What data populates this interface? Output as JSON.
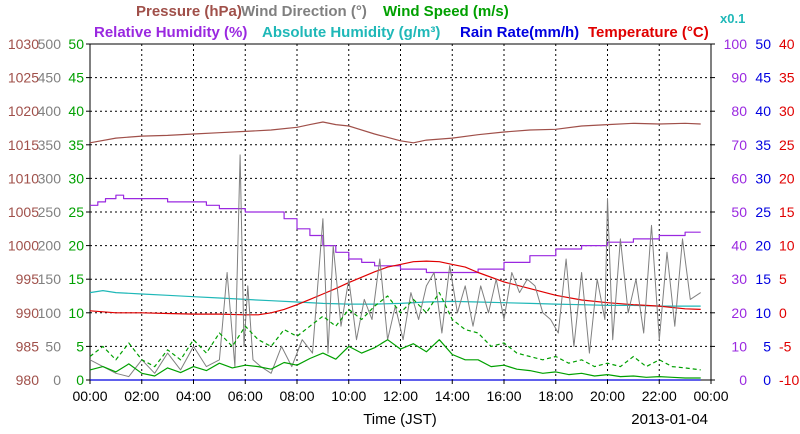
{
  "chart_data": {
    "type": "line",
    "title": "",
    "date_label": "2013-01-04",
    "xlabel": "Time (JST)",
    "x_ticks": [
      "00:00",
      "02:00",
      "04:00",
      "06:00",
      "08:00",
      "10:00",
      "12:00",
      "14:00",
      "16:00",
      "18:00",
      "20:00",
      "22:00",
      "00:00"
    ],
    "xlim": [
      0,
      24
    ],
    "grid": true,
    "legend": {
      "row1": [
        {
          "key": "pressure",
          "label": "Pressure (hPa)",
          "color": "#a0504a"
        },
        {
          "key": "wind_dir",
          "label": "Wind Direction (°)",
          "color": "#808080"
        },
        {
          "key": "wind_speed",
          "label": "Wind Speed (m/s)",
          "color": "#00a000"
        }
      ],
      "row2": [
        {
          "key": "rel_hum",
          "label": "Relative Humidity (%)",
          "color": "#9a28e0"
        },
        {
          "key": "abs_hum",
          "label": "Absolute Humidity (g/m³)",
          "color": "#1fb8b8"
        },
        {
          "key": "abs_hum_scale",
          "label": "x0.1",
          "color": "#1fb8b8"
        },
        {
          "key": "rain",
          "label": "Rain Rate(mm/h)",
          "color": "#0000e0"
        },
        {
          "key": "temp",
          "label": "Temperature (°C)",
          "color": "#e00000"
        }
      ]
    },
    "axes": {
      "pressure": {
        "range": [
          980,
          1030
        ],
        "ticks": [
          "1030",
          "1025",
          "1020",
          "1015",
          "1010",
          "1005",
          "1000",
          "995",
          "990",
          "985",
          "980"
        ],
        "color": "#a0504a"
      },
      "wind_dir": {
        "range": [
          0,
          500
        ],
        "ticks": [
          "500",
          "450",
          "400",
          "350",
          "300",
          "250",
          "200",
          "150",
          "100",
          "50",
          "0"
        ],
        "color": "#808080"
      },
      "wind_speed": {
        "range": [
          0,
          50
        ],
        "ticks": [
          "50",
          "45",
          "40",
          "35",
          "30",
          "25",
          "20",
          "15",
          "10",
          "5",
          "0"
        ],
        "color": "#00a000"
      },
      "rel_hum": {
        "range": [
          0,
          100
        ],
        "ticks": [
          "100",
          "90",
          "80",
          "70",
          "60",
          "50",
          "40",
          "30",
          "20",
          "10",
          "0"
        ],
        "color": "#9a28e0"
      },
      "rain": {
        "range": [
          0,
          50
        ],
        "ticks": [
          "50",
          "45",
          "40",
          "35",
          "30",
          "25",
          "20",
          "15",
          "10",
          "5",
          "0"
        ],
        "color": "#0000e0"
      },
      "temp": {
        "range": [
          -10,
          40
        ],
        "ticks": [
          "40",
          "35",
          "30",
          "25",
          "20",
          "15",
          "10",
          "5",
          "0",
          "-5",
          "-10"
        ],
        "color": "#e00000"
      }
    },
    "series": [
      {
        "key": "pressure",
        "name": "Pressure (hPa)",
        "axis": "pressure",
        "color": "#a0504a",
        "style": "solid",
        "x": [
          0,
          1,
          2,
          3,
          4,
          5,
          6,
          7,
          8,
          8.5,
          9,
          9.5,
          10,
          11,
          12,
          12.5,
          13,
          14,
          15,
          16,
          17,
          18,
          19,
          20,
          21,
          22,
          23,
          23.6
        ],
        "values": [
          1015.3,
          1016,
          1016.3,
          1016.4,
          1016.6,
          1016.8,
          1017.0,
          1017.2,
          1017.6,
          1018.0,
          1018.4,
          1018.0,
          1017.8,
          1016.6,
          1015.6,
          1015.3,
          1015.7,
          1016.0,
          1016.5,
          1016.9,
          1017.2,
          1017.3,
          1017.8,
          1018.0,
          1018.2,
          1018.1,
          1018.2,
          1018.1
        ]
      },
      {
        "key": "rel_hum",
        "name": "Relative Humidity (%)",
        "axis": "rel_hum",
        "color": "#9a28e0",
        "style": "step",
        "x": [
          0,
          0.3,
          0.6,
          1.0,
          1.3,
          2.0,
          3.0,
          4.0,
          4.5,
          5.0,
          6.0,
          7.0,
          7.5,
          8.0,
          8.5,
          9.0,
          9.5,
          10.0,
          10.5,
          11.0,
          12.0,
          13.0,
          14.0,
          15.0,
          16.0,
          17.0,
          18.0,
          19.0,
          20.0,
          21.0,
          22.0,
          23.0,
          23.6
        ],
        "values": [
          52,
          53,
          54,
          55,
          54,
          54,
          53,
          53,
          52,
          51,
          50,
          50,
          48,
          45,
          43,
          40,
          38,
          36,
          35,
          34,
          33,
          32,
          32,
          33,
          35,
          37,
          39,
          40,
          41,
          42,
          43,
          44,
          44
        ]
      },
      {
        "key": "abs_hum",
        "name": "Absolute Humidity (g/m³)",
        "axis": "wind_speed",
        "color": "#1fb8b8",
        "style": "solid",
        "x": [
          0,
          0.5,
          1,
          2,
          3,
          4,
          5,
          6,
          7,
          8,
          9,
          10,
          11,
          12,
          13,
          14,
          15,
          16,
          17,
          18,
          19,
          20,
          21,
          22,
          23,
          23.6
        ],
        "values": [
          13.0,
          13.3,
          13.0,
          12.8,
          12.6,
          12.4,
          12.2,
          12.0,
          11.8,
          11.6,
          11.4,
          11.3,
          11.3,
          11.4,
          11.6,
          11.7,
          11.6,
          11.5,
          11.4,
          11.3,
          11.2,
          11.1,
          11.1,
          11.0,
          11.0,
          11.0
        ]
      },
      {
        "key": "temp",
        "name": "Temperature (°C)",
        "axis": "temp",
        "color": "#e00000",
        "style": "solid",
        "x": [
          0,
          1,
          2,
          3,
          4,
          5,
          6,
          6.5,
          7,
          7.5,
          8,
          8.5,
          9,
          9.5,
          10,
          10.5,
          11,
          11.5,
          12,
          12.5,
          13,
          13.5,
          14,
          14.5,
          15,
          16,
          17,
          18,
          19,
          20,
          21,
          22,
          23,
          23.6
        ],
        "values": [
          0.3,
          0.0,
          0.0,
          -0.1,
          -0.2,
          -0.2,
          -0.3,
          -0.3,
          0.0,
          0.5,
          1.2,
          2.0,
          2.8,
          3.6,
          4.5,
          5.3,
          6.1,
          6.8,
          7.2,
          7.6,
          7.7,
          7.6,
          7.2,
          6.8,
          6.0,
          4.6,
          3.6,
          2.6,
          1.9,
          1.5,
          1.2,
          1.0,
          0.6,
          0.5
        ]
      },
      {
        "key": "rain",
        "name": "Rain Rate(mm/h)",
        "axis": "rain",
        "color": "#0000e0",
        "style": "solid",
        "x": [
          0,
          23.6
        ],
        "values": [
          0,
          0
        ]
      },
      {
        "key": "wind_dir",
        "name": "Wind Direction (°)",
        "axis": "wind_dir",
        "color": "#808080",
        "style": "spiky",
        "x": [
          0,
          0.5,
          1.0,
          1.5,
          2.0,
          2.5,
          3.0,
          3.5,
          4.0,
          4.5,
          5.0,
          5.3,
          5.6,
          5.8,
          5.95,
          6.1,
          6.3,
          6.6,
          7.0,
          7.4,
          7.8,
          8.2,
          8.6,
          9.0,
          9.2,
          9.4,
          9.7,
          10.0,
          10.3,
          10.6,
          10.9,
          11.2,
          11.5,
          11.8,
          12.1,
          12.4,
          12.7,
          13.0,
          13.3,
          13.6,
          13.9,
          14.2,
          14.5,
          14.8,
          15.1,
          15.4,
          15.7,
          16.0,
          16.3,
          16.6,
          16.9,
          17.2,
          17.5,
          17.8,
          18.1,
          18.4,
          18.7,
          19.0,
          19.3,
          19.6,
          19.9,
          20.0,
          20.2,
          20.5,
          20.8,
          21.1,
          21.4,
          21.7,
          22.0,
          22.3,
          22.6,
          22.9,
          23.2,
          23.6
        ],
        "values": [
          30,
          20,
          10,
          5,
          30,
          10,
          40,
          15,
          50,
          20,
          30,
          160,
          20,
          335,
          50,
          140,
          30,
          20,
          10,
          50,
          20,
          60,
          40,
          240,
          40,
          200,
          80,
          150,
          60,
          120,
          90,
          180,
          60,
          110,
          60,
          130,
          90,
          140,
          160,
          70,
          170,
          100,
          140,
          80,
          140,
          100,
          150,
          90,
          160,
          130,
          150,
          140,
          100,
          90,
          70,
          180,
          50,
          160,
          40,
          150,
          90,
          270,
          60,
          210,
          100,
          150,
          70,
          230,
          60,
          190,
          80,
          210,
          120,
          130
        ]
      },
      {
        "key": "wind_speed",
        "name": "Wind Speed (m/s)",
        "axis": "wind_speed",
        "color": "#00a000",
        "style": "solid",
        "x": [
          0,
          0.5,
          1.0,
          1.5,
          2.0,
          2.5,
          3.0,
          3.5,
          4.0,
          4.5,
          5.0,
          5.5,
          6.0,
          6.5,
          7.0,
          7.5,
          8.0,
          8.5,
          9.0,
          9.5,
          10.0,
          10.5,
          11.0,
          11.5,
          12.0,
          12.5,
          13.0,
          13.5,
          14.0,
          14.5,
          15.0,
          15.5,
          16.0,
          16.5,
          17.0,
          17.5,
          18.0,
          18.5,
          19.0,
          19.5,
          20.0,
          20.5,
          21.0,
          21.5,
          22.0,
          22.5,
          23.0,
          23.6
        ],
        "values": [
          1.5,
          2.0,
          1.2,
          2.4,
          1.0,
          0.6,
          1.8,
          1.1,
          2.0,
          1.4,
          2.5,
          1.8,
          2.2,
          2.0,
          1.6,
          2.6,
          2.2,
          3.2,
          4.0,
          3.1,
          5.0,
          4.0,
          4.8,
          6.0,
          4.6,
          5.4,
          4.2,
          6.0,
          3.8,
          3.0,
          3.0,
          2.0,
          2.2,
          1.6,
          1.4,
          1.0,
          1.2,
          0.8,
          1.0,
          0.6,
          0.8,
          0.5,
          0.6,
          0.4,
          0.5,
          0.4,
          0.3,
          0.3
        ]
      },
      {
        "key": "wind_gust",
        "name": "",
        "axis": "wind_speed",
        "color": "#00a000",
        "style": "dashed",
        "x": [
          0,
          0.5,
          1.0,
          1.5,
          2.0,
          2.5,
          3.0,
          3.5,
          4.0,
          4.5,
          5.0,
          5.5,
          6.0,
          6.5,
          7.0,
          7.5,
          8.0,
          8.5,
          9.0,
          9.5,
          10.0,
          10.5,
          11.0,
          11.5,
          12.0,
          12.5,
          13.0,
          13.5,
          14.0,
          14.5,
          15.0,
          15.5,
          16.0,
          16.5,
          17.0,
          17.5,
          18.0,
          18.5,
          19.0,
          19.5,
          20.0,
          20.5,
          21.0,
          21.5,
          22.0,
          22.5,
          23.0,
          23.6
        ],
        "values": [
          3.5,
          5.0,
          3.0,
          5.5,
          3.0,
          2.0,
          4.5,
          3.0,
          6.0,
          4.0,
          7.0,
          5.0,
          8.0,
          6.0,
          5.0,
          7.5,
          6.5,
          8.0,
          9.5,
          8.0,
          10.5,
          9.0,
          11.0,
          12.5,
          10.0,
          12.0,
          10.0,
          13.0,
          9.0,
          7.5,
          7.0,
          5.0,
          5.5,
          4.0,
          3.5,
          3.0,
          3.5,
          2.5,
          3.0,
          2.0,
          2.5,
          2.0,
          3.5,
          2.0,
          3.0,
          2.0,
          1.8,
          1.5
        ]
      }
    ]
  }
}
